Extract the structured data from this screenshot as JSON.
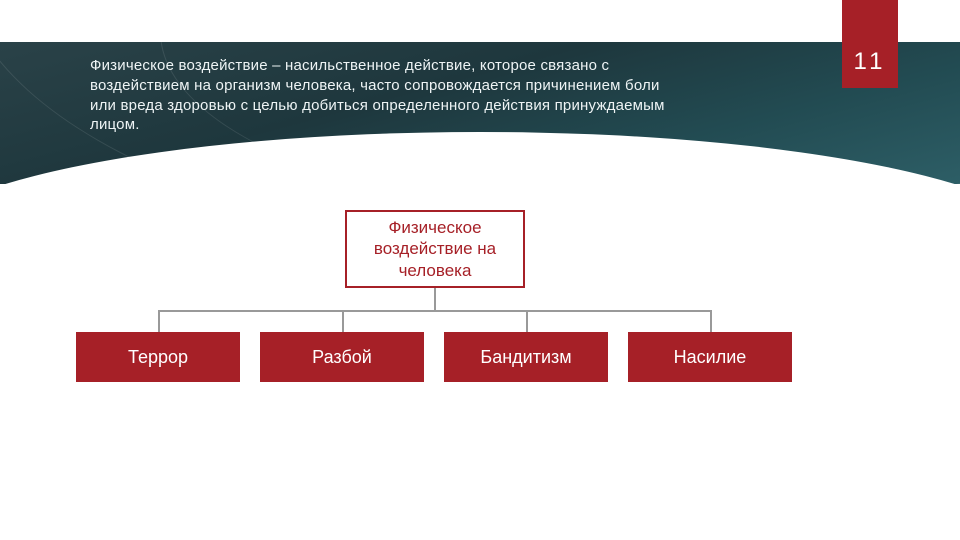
{
  "page_number": "11",
  "header": {
    "text": "Физическое воздействие – насильственное действие, которое связано с воздействием на организм человека, часто сопровождается причинением боли или вреда здоровью с целью добиться определенного действия принуждаемым лицом.",
    "text_color": "#eef4f5",
    "band_gradient_from": "#2a4248",
    "band_gradient_to": "#2d5e66",
    "font_size_pt": 11
  },
  "tab": {
    "background": "#a62027",
    "text_color": "#ffffff"
  },
  "chart": {
    "type": "tree",
    "parent": {
      "label": "Физическое воздействие на человека",
      "border_color": "#a62027",
      "text_color": "#a62027",
      "background": "#ffffff",
      "font_size_pt": 13
    },
    "children_style": {
      "background": "#a62027",
      "text_color": "#ffffff",
      "font_size_pt": 14
    },
    "connector_color": "#999999",
    "children": [
      {
        "label": "Террор"
      },
      {
        "label": "Разбой"
      },
      {
        "label": "Бандитизм"
      },
      {
        "label": "Насилие"
      }
    ]
  }
}
